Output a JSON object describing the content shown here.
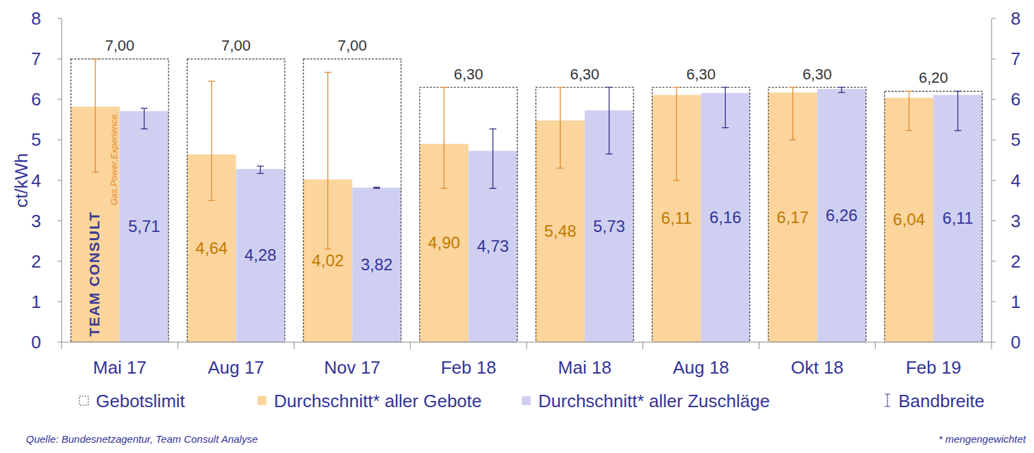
{
  "chart_data": {
    "type": "bar",
    "categories": [
      "Mai 17",
      "Aug 17",
      "Nov 17",
      "Feb 18",
      "Mai 18",
      "Aug 18",
      "Okt 18",
      "Feb 19"
    ],
    "series": [
      {
        "name": "Gebotslimit",
        "type": "limit",
        "color": "#333333",
        "values": [
          7.0,
          7.0,
          7.0,
          6.3,
          6.3,
          6.3,
          6.3,
          6.2
        ],
        "value_labels": [
          "7,00",
          "7,00",
          "7,00",
          "6,30",
          "6,30",
          "6,30",
          "6,30",
          "6,20"
        ]
      },
      {
        "name": "Durchschnitt* aller Gebote",
        "type": "bar",
        "color": "#fcd59c",
        "values": [
          5.82,
          4.64,
          4.02,
          4.9,
          5.48,
          6.11,
          6.17,
          6.04
        ],
        "value_labels": [
          null,
          "4,64",
          "4,02",
          "4,90",
          "5,48",
          "6,11",
          "6,17",
          "6,04"
        ],
        "range_low": [
          4.2,
          3.5,
          2.3,
          3.8,
          4.3,
          4.0,
          5.0,
          5.23
        ],
        "range_high": [
          7.0,
          6.45,
          6.67,
          6.3,
          6.3,
          6.3,
          6.3,
          6.2
        ]
      },
      {
        "name": "Durchschnitt* aller Zuschläge",
        "type": "bar",
        "color": "#cfd0f1",
        "values": [
          5.71,
          4.28,
          3.82,
          4.73,
          5.73,
          6.16,
          6.26,
          6.11
        ],
        "value_labels": [
          "5,71",
          "4,28",
          "3,82",
          "4,73",
          "5,73",
          "6,16",
          "6,26",
          "6,11"
        ],
        "range_low": [
          5.27,
          4.17,
          3.8,
          3.8,
          4.65,
          5.3,
          6.17,
          5.23
        ],
        "range_high": [
          5.78,
          4.35,
          3.83,
          5.27,
          6.3,
          6.3,
          6.3,
          6.2
        ]
      }
    ],
    "error_bar_label": "Bandbreite",
    "y_label": "ct/kWh",
    "ylim": [
      0,
      8
    ],
    "yticks": [
      0,
      1,
      2,
      3,
      4,
      5,
      6,
      7,
      8
    ],
    "y2lim": [
      0,
      8
    ],
    "y2ticks": [
      0,
      1,
      2,
      3,
      4,
      5,
      6,
      7,
      8
    ],
    "grid": false,
    "legend": "bottom",
    "data_labels": true,
    "source": "Quelle: Bundesnetzagentur,  Team Consult Analyse",
    "footnote": "* mengengewichtet",
    "logo": [
      "TEAM CONSULT",
      "Gas.Power.Experience."
    ]
  }
}
